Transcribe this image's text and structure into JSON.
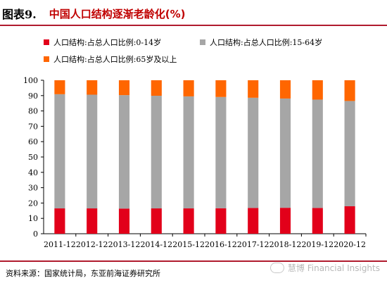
{
  "header": {
    "figure_label": "图表9.",
    "title": "中国人口结构逐渐老龄化(%)"
  },
  "footer": {
    "source": "资料来源：国家统计局，东亚前海证券研究所",
    "watermark": "慧博 Financial Insights"
  },
  "colors": {
    "accent": "#b01b2e",
    "title": "#c00000"
  },
  "chart_data": {
    "type": "bar",
    "stacked": true,
    "categories": [
      "2011-12",
      "2012-12",
      "2013-12",
      "2014-12",
      "2015-12",
      "2016-12",
      "2017-12",
      "2018-12",
      "2019-12",
      "2020-12"
    ],
    "series": [
      {
        "name": "人口结构:占总人口比例:0-14岁",
        "color": "#e2001a",
        "values": [
          16.5,
          16.5,
          16.4,
          16.5,
          16.5,
          16.6,
          16.8,
          16.9,
          16.8,
          17.9
        ]
      },
      {
        "name": "人口结构:占总人口比例:15-64岁",
        "color": "#a6a6a6",
        "values": [
          74.4,
          74.1,
          73.9,
          73.4,
          73.0,
          72.5,
          71.8,
          71.2,
          70.6,
          68.6
        ]
      },
      {
        "name": "人口结构:占总人口比例:65岁及以上",
        "color": "#ff6600",
        "values": [
          9.1,
          9.4,
          9.7,
          10.1,
          10.5,
          10.9,
          11.4,
          11.9,
          12.6,
          13.5
        ]
      }
    ],
    "yticks": [
      "0",
      "10",
      "20",
      "30",
      "40",
      "50",
      "60",
      "70",
      "80",
      "90",
      "100"
    ],
    "ylim": [
      0,
      100
    ],
    "legend_position": "top"
  }
}
